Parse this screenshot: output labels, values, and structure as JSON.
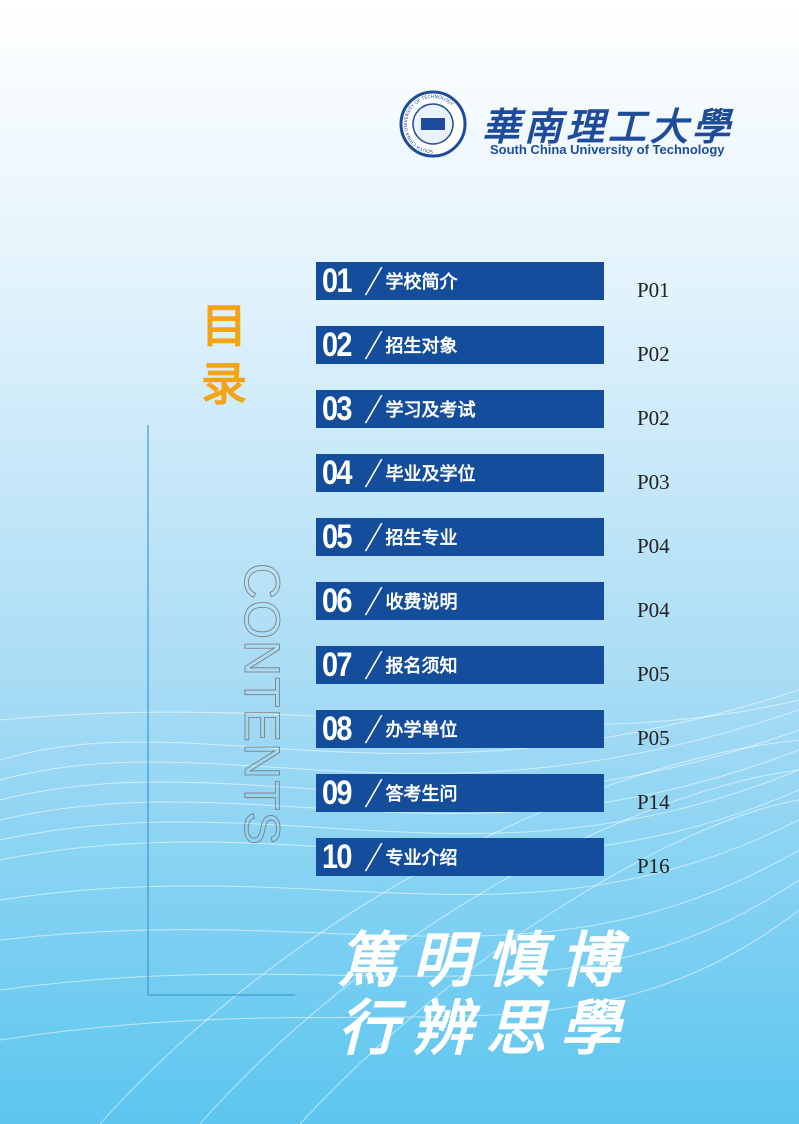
{
  "header": {
    "logo_seal_text": "SOUTH CHINA UNIVERSITY OF TECHNOLOGY",
    "university_cn": "華南理工大學",
    "university_en": "South China University of Technology"
  },
  "side": {
    "contents": "CONTENTS",
    "title_chars": [
      "目",
      "录"
    ]
  },
  "items": [
    {
      "number": "01",
      "title": "学校简介",
      "page": "P01"
    },
    {
      "number": "02",
      "title": "招生对象",
      "page": "P02"
    },
    {
      "number": "03",
      "title": "学习及考试",
      "page": "P02"
    },
    {
      "number": "04",
      "title": "毕业及学位",
      "page": "P03"
    },
    {
      "number": "05",
      "title": "招生专业",
      "page": "P04"
    },
    {
      "number": "06",
      "title": "收费说明",
      "page": "P04"
    },
    {
      "number": "07",
      "title": "报名须知",
      "page": "P05"
    },
    {
      "number": "08",
      "title": "办学单位",
      "page": "P05"
    },
    {
      "number": "09",
      "title": "答考生问",
      "page": "P14"
    },
    {
      "number": "10",
      "title": "专业介绍",
      "page": "P16"
    }
  ],
  "motto": {
    "line1": "篤明慎博",
    "line2": "行辨思學"
  }
}
